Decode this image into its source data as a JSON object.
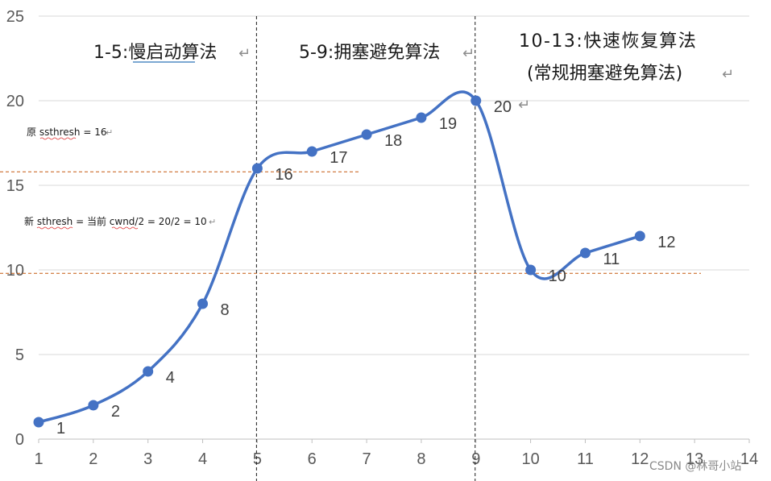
{
  "chart_data": {
    "type": "line",
    "x": [
      1,
      2,
      3,
      4,
      5,
      6,
      7,
      8,
      9,
      10,
      11,
      12
    ],
    "series": [
      {
        "values": [
          1,
          2,
          4,
          8,
          16,
          17,
          18,
          19,
          20,
          10,
          11,
          12
        ]
      }
    ],
    "data_labels": [
      "1",
      "2",
      "4",
      "8",
      "16",
      "17",
      "18",
      "19",
      "20",
      "10",
      "11",
      "12"
    ],
    "xlim": [
      1,
      14
    ],
    "ylim": [
      0,
      25
    ],
    "x_ticks": [
      "1",
      "2",
      "3",
      "4",
      "5",
      "6",
      "7",
      "8",
      "9",
      "10",
      "11",
      "12",
      "13",
      "14"
    ],
    "y_ticks": [
      "0",
      "5",
      "10",
      "15",
      "20",
      "25"
    ],
    "grid": "horizontal",
    "smooth": true,
    "series_color": "#4472C4",
    "threshold_color": "#C55A11",
    "vertical_lines_x": [
      5,
      9
    ],
    "threshold_lines_y": [
      15.8,
      9.8
    ]
  },
  "annotations": {
    "phase1": "1-5:慢启动算法",
    "phase2": "5-9:拥塞避免算法",
    "phase3_line1": "10-13:快速恢复算法",
    "phase3_line2": "(常规拥塞避免算法)",
    "old_ssthresh": "原 ssthresh = 16",
    "new_ssthresh": "新 sthresh =  当前 cwnd/2 = 20/2 = 10"
  },
  "return_mark": "↵",
  "watermark": "CSDN @林哥小站"
}
